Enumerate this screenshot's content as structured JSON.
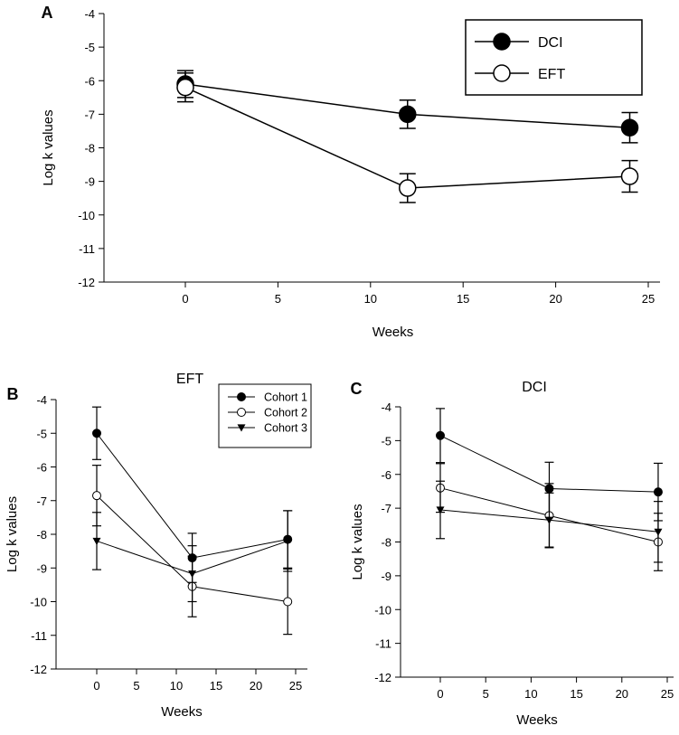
{
  "chart_data": [
    {
      "type": "line",
      "panel_label": "A",
      "title": "",
      "xlabel": "Weeks",
      "ylabel": "Log k values",
      "xlim": [
        -4.4,
        25.5
      ],
      "ylim": [
        -12,
        -4
      ],
      "xticks": [
        0,
        5,
        10,
        15,
        20,
        25
      ],
      "yticks": [
        -4,
        -5,
        -6,
        -7,
        -8,
        -9,
        -10,
        -11,
        -12
      ],
      "legend_position": "top-right",
      "x": [
        0,
        12,
        24
      ],
      "series": [
        {
          "name": "DCI",
          "marker": "filled-circle",
          "values": [
            -6.1,
            -7.0,
            -7.4
          ],
          "errors": [
            0.4,
            0.42,
            0.45
          ]
        },
        {
          "name": "EFT",
          "marker": "open-circle",
          "values": [
            -6.2,
            -9.2,
            -8.85
          ],
          "errors": [
            0.43,
            0.43,
            0.47
          ]
        }
      ]
    },
    {
      "type": "line",
      "panel_label": "B",
      "title": "EFT",
      "xlabel": "Weeks",
      "ylabel": "Log k values",
      "xlim": [
        -5.1,
        26
      ],
      "ylim": [
        -12,
        -4
      ],
      "xticks": [
        0,
        5,
        10,
        15,
        20,
        25
      ],
      "yticks": [
        -4,
        -5,
        -6,
        -7,
        -8,
        -9,
        -10,
        -11,
        -12
      ],
      "legend_position": "top-right",
      "x": [
        0,
        12,
        24
      ],
      "series": [
        {
          "name": "Cohort 1",
          "marker": "filled-circle",
          "values": [
            -5.0,
            -8.7,
            -8.15
          ],
          "errors": [
            0.78,
            0.73,
            0.85
          ]
        },
        {
          "name": "Cohort 2",
          "marker": "open-circle",
          "values": [
            -6.85,
            -9.55,
            -10.0
          ],
          "errors": [
            0.9,
            0.9,
            0.97
          ]
        },
        {
          "name": "Cohort 3",
          "marker": "triangle-down",
          "values": [
            -8.2,
            -9.17,
            -8.2
          ],
          "errors": [
            0.85,
            0.83,
            0.9
          ]
        }
      ]
    },
    {
      "type": "line",
      "panel_label": "C",
      "title": "DCI",
      "xlabel": "Weeks",
      "ylabel": "Log k values",
      "xlim": [
        -4.4,
        25.5
      ],
      "ylim": [
        -12,
        -4
      ],
      "xticks": [
        0,
        5,
        10,
        15,
        20,
        25
      ],
      "yticks": [
        -4,
        -5,
        -6,
        -7,
        -8,
        -9,
        -10,
        -11,
        -12
      ],
      "x": [
        0,
        12,
        24
      ],
      "series": [
        {
          "name": "Cohort 1",
          "marker": "filled-circle",
          "values": [
            -4.85,
            -6.42,
            -6.52
          ],
          "errors": [
            0.8,
            0.78,
            0.85
          ]
        },
        {
          "name": "Cohort 2",
          "marker": "open-circle",
          "values": [
            -6.4,
            -7.22,
            -8.0
          ],
          "errors": [
            0.72,
            0.95,
            0.85
          ]
        },
        {
          "name": "Cohort 3",
          "marker": "triangle-down",
          "values": [
            -7.05,
            -7.35,
            -7.7
          ],
          "errors": [
            0.85,
            0.8,
            0.9
          ]
        }
      ]
    }
  ]
}
